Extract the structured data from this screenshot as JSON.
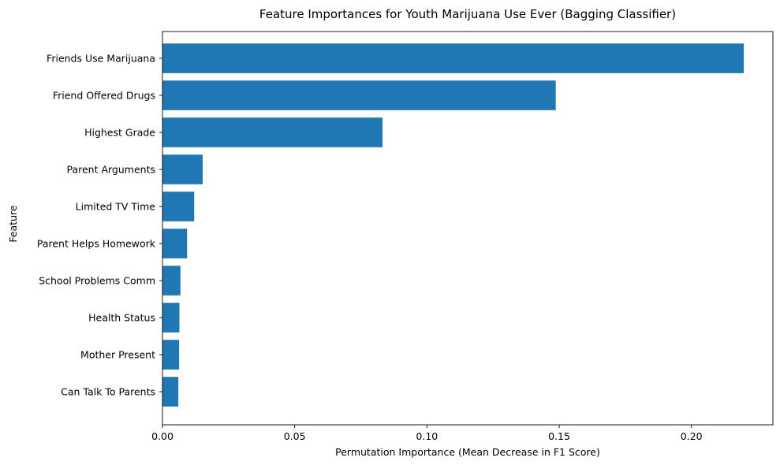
{
  "chart_data": {
    "type": "bar",
    "orientation": "horizontal",
    "title": "Feature Importances for Youth Marijuana Use Ever (Bagging Classifier)",
    "xlabel": "Permutation Importance (Mean Decrease in F1 Score)",
    "ylabel": "Feature",
    "categories": [
      "Friends Use Marijuana",
      "Friend Offered Drugs",
      "Highest Grade",
      "Parent Arguments",
      "Limited TV Time",
      "Parent Helps Homework",
      "School Problems Comm",
      "Health Status",
      "Mother Present",
      "Can Talk To Parents"
    ],
    "values": [
      0.2198,
      0.1487,
      0.0832,
      0.0152,
      0.012,
      0.0093,
      0.0068,
      0.0064,
      0.0063,
      0.006
    ],
    "xlim": [
      0,
      0.2308
    ],
    "xticks": [
      "0.00",
      "0.05",
      "0.10",
      "0.15",
      "0.20"
    ],
    "bar_color": "#1f77b4",
    "grid": false,
    "legend": "none"
  }
}
